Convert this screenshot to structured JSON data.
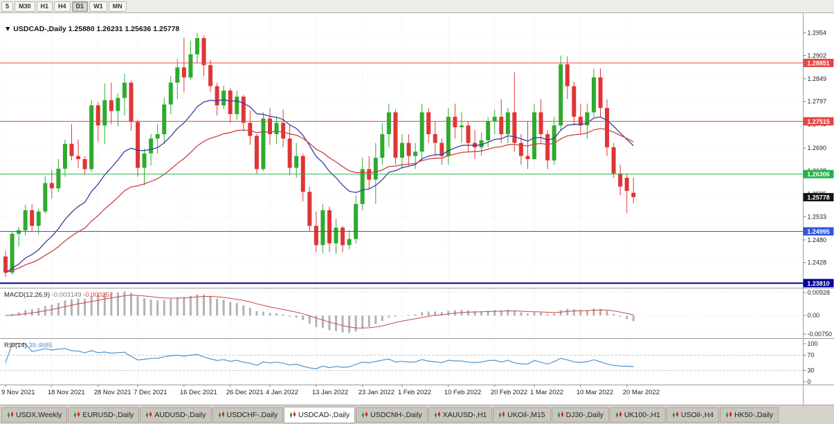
{
  "toolbar": {
    "timeframes": [
      "5",
      "M30",
      "H1",
      "H4",
      "D1",
      "W1",
      "MN"
    ],
    "active_timeframe": "D1"
  },
  "chart_header": {
    "marker": "▼",
    "symbol": "USDCAD-,Daily",
    "open": "1.25880",
    "high": "1.26231",
    "low": "1.25636",
    "close": "1.25778"
  },
  "chart_data": {
    "type": "candlestick",
    "title": "USDCAD-,Daily",
    "price_range": [
      1.2372,
      1.2996
    ],
    "price_axis_ticks": [
      "1.2954",
      "1.2902",
      "1.2849",
      "1.2797",
      "1.2745",
      "1.2690",
      "1.2638",
      "1.2585",
      "1.2533",
      "1.2480",
      "1.2428"
    ],
    "up_color": "#2eab2e",
    "down_color": "#e03535",
    "levels": [
      {
        "price": 1.28851,
        "label": "1.28851",
        "color": "#e84545",
        "width": 1
      },
      {
        "price": 1.27515,
        "label": "1.27515",
        "color": "#e84545",
        "width": 1
      },
      {
        "price": 1.26306,
        "label": "1.26306",
        "color": "#22b14c",
        "width": 1
      },
      {
        "price": 1.24995,
        "label": "1.24995",
        "color": "#3355dd",
        "width": 1
      },
      {
        "price": 1.2381,
        "label": "1.23810",
        "color": "#000099",
        "width": 2
      }
    ],
    "current_price": {
      "value": 1.25778,
      "label": "1.25778",
      "badge_color": "#141414"
    },
    "moving_averages": [
      {
        "period": 17,
        "type": "ema",
        "color": "#3b3b9e"
      },
      {
        "period": 34,
        "type": "ema",
        "color": "#cc4040"
      }
    ],
    "macd": {
      "label": "MACD(12,26,9)",
      "values_text": [
        "-0.003149",
        "-0.000257"
      ],
      "axis_ticks": [
        "0.00928",
        "0.00",
        "-0.00750"
      ],
      "range": [
        -0.0086,
        0.0104
      ],
      "histogram_color": "#b2b2b2",
      "signal_color": "#cc4444"
    },
    "rsi": {
      "label": "RSI(14)",
      "value_text": "39.4685",
      "axis_ticks": [
        "100",
        "70",
        "30",
        "0"
      ],
      "levels": [
        70,
        30
      ],
      "line_color": "#4f94cd"
    },
    "date_ticks": [
      {
        "label": "9 Nov 2021",
        "index": 0
      },
      {
        "label": "18 Nov 2021",
        "index": 7
      },
      {
        "label": "28 Nov 2021",
        "index": 14
      },
      {
        "label": "7 Dec 2021",
        "index": 20
      },
      {
        "label": "16 Dec 2021",
        "index": 27
      },
      {
        "label": "26 Dec 2021",
        "index": 34
      },
      {
        "label": "4 Jan 2022",
        "index": 40
      },
      {
        "label": "13 Jan 2022",
        "index": 47
      },
      {
        "label": "23 Jan 2022",
        "index": 54
      },
      {
        "label": "1 Feb 2022",
        "index": 60
      },
      {
        "label": "10 Feb 2022",
        "index": 67
      },
      {
        "label": "20 Feb 2022",
        "index": 74
      },
      {
        "label": "1 Mar 2022",
        "index": 80
      },
      {
        "label": "10 Mar 2022",
        "index": 87
      },
      {
        "label": "20 Mar 2022",
        "index": 94
      }
    ],
    "candles": [
      [
        "2021-11-09",
        1.2442,
        1.2455,
        1.2395,
        1.2405
      ],
      [
        "2021-11-10",
        1.2405,
        1.25,
        1.24,
        1.2494
      ],
      [
        "2021-11-11",
        1.2494,
        1.251,
        1.2465,
        1.2502
      ],
      [
        "2021-11-12",
        1.2502,
        1.256,
        1.249,
        1.2548
      ],
      [
        "2021-11-15",
        1.2548,
        1.2562,
        1.25,
        1.2512
      ],
      [
        "2021-11-16",
        1.2512,
        1.2552,
        1.2492,
        1.2545
      ],
      [
        "2021-11-17",
        1.2545,
        1.2626,
        1.254,
        1.261
      ],
      [
        "2021-11-18",
        1.261,
        1.264,
        1.2575,
        1.2598
      ],
      [
        "2021-11-19",
        1.2598,
        1.2665,
        1.259,
        1.2643
      ],
      [
        "2021-11-22",
        1.2643,
        1.271,
        1.2625,
        1.27
      ],
      [
        "2021-11-23",
        1.27,
        1.2745,
        1.2662,
        1.2672
      ],
      [
        "2021-11-24",
        1.2672,
        1.271,
        1.2645,
        1.2665
      ],
      [
        "2021-11-25",
        1.2665,
        1.2672,
        1.2628,
        1.2642
      ],
      [
        "2021-11-26",
        1.2642,
        1.28,
        1.2636,
        1.2788
      ],
      [
        "2021-11-29",
        1.2788,
        1.2795,
        1.2705,
        1.2742
      ],
      [
        "2021-11-30",
        1.2742,
        1.2838,
        1.27,
        1.28
      ],
      [
        "2021-12-01",
        1.28,
        1.284,
        1.2745,
        1.2775
      ],
      [
        "2021-12-02",
        1.2775,
        1.2815,
        1.274,
        1.2805
      ],
      [
        "2021-12-03",
        1.2805,
        1.286,
        1.2765,
        1.284
      ],
      [
        "2021-12-06",
        1.284,
        1.2845,
        1.273,
        1.275
      ],
      [
        "2021-12-07",
        1.275,
        1.2755,
        1.2625,
        1.2645
      ],
      [
        "2021-12-08",
        1.2645,
        1.269,
        1.2605,
        1.2678
      ],
      [
        "2021-12-09",
        1.2678,
        1.2722,
        1.265,
        1.2712
      ],
      [
        "2021-12-10",
        1.2712,
        1.2745,
        1.2678,
        1.2722
      ],
      [
        "2021-12-13",
        1.2722,
        1.2805,
        1.27,
        1.279
      ],
      [
        "2021-12-14",
        1.279,
        1.2855,
        1.2768,
        1.284
      ],
      [
        "2021-12-15",
        1.284,
        1.2895,
        1.2802,
        1.2875
      ],
      [
        "2021-12-16",
        1.2875,
        1.2942,
        1.2818,
        1.2852
      ],
      [
        "2021-12-17",
        1.2852,
        1.2936,
        1.2846,
        1.2905
      ],
      [
        "2021-12-20",
        1.2905,
        1.2954,
        1.2885,
        1.2942
      ],
      [
        "2021-12-21",
        1.2942,
        1.2948,
        1.2855,
        1.288
      ],
      [
        "2021-12-22",
        1.288,
        1.2892,
        1.2818,
        1.2832
      ],
      [
        "2021-12-23",
        1.2832,
        1.284,
        1.2765,
        1.2788
      ],
      [
        "2021-12-24",
        1.2788,
        1.2833,
        1.278,
        1.2822
      ],
      [
        "2021-12-27",
        1.2822,
        1.2828,
        1.2748,
        1.2768
      ],
      [
        "2021-12-28",
        1.2768,
        1.2822,
        1.2755,
        1.2808
      ],
      [
        "2021-12-29",
        1.2808,
        1.2812,
        1.2728,
        1.2748
      ],
      [
        "2021-12-30",
        1.2748,
        1.2776,
        1.2698,
        1.2718
      ],
      [
        "2021-12-31",
        1.2718,
        1.2722,
        1.2632,
        1.2642
      ],
      [
        "2022-01-03",
        1.2642,
        1.2772,
        1.2638,
        1.2758
      ],
      [
        "2022-01-04",
        1.2758,
        1.2782,
        1.2698,
        1.2722
      ],
      [
        "2022-01-05",
        1.2722,
        1.2762,
        1.27,
        1.2748
      ],
      [
        "2022-01-06",
        1.2748,
        1.2778,
        1.2692,
        1.2712
      ],
      [
        "2022-01-07",
        1.2712,
        1.2742,
        1.2628,
        1.2645
      ],
      [
        "2022-01-10",
        1.2645,
        1.2702,
        1.2622,
        1.2672
      ],
      [
        "2022-01-11",
        1.2672,
        1.2678,
        1.2568,
        1.259
      ],
      [
        "2022-01-12",
        1.259,
        1.2602,
        1.2498,
        1.2512
      ],
      [
        "2022-01-13",
        1.2512,
        1.2545,
        1.2452,
        1.2468
      ],
      [
        "2022-01-14",
        1.2468,
        1.2562,
        1.245,
        1.2548
      ],
      [
        "2022-01-17",
        1.2548,
        1.2556,
        1.2452,
        1.2472
      ],
      [
        "2022-01-18",
        1.2472,
        1.2528,
        1.2448,
        1.2508
      ],
      [
        "2022-01-19",
        1.2508,
        1.2512,
        1.2452,
        1.2468
      ],
      [
        "2022-01-20",
        1.2468,
        1.2502,
        1.2458,
        1.2482
      ],
      [
        "2022-01-21",
        1.2482,
        1.2582,
        1.2472,
        1.2562
      ],
      [
        "2022-01-24",
        1.2562,
        1.2668,
        1.2548,
        1.2642
      ],
      [
        "2022-01-25",
        1.2642,
        1.2672,
        1.2598,
        1.2618
      ],
      [
        "2022-01-26",
        1.2618,
        1.2702,
        1.2562,
        1.2668
      ],
      [
        "2022-01-27",
        1.2668,
        1.2748,
        1.2652,
        1.2722
      ],
      [
        "2022-01-28",
        1.2722,
        1.2792,
        1.2692,
        1.2772
      ],
      [
        "2022-01-31",
        1.2772,
        1.2778,
        1.2652,
        1.2668
      ],
      [
        "2022-02-01",
        1.2668,
        1.2722,
        1.2642,
        1.2702
      ],
      [
        "2022-02-02",
        1.2702,
        1.2722,
        1.265,
        1.2672
      ],
      [
        "2022-02-03",
        1.2672,
        1.2702,
        1.2642,
        1.2682
      ],
      [
        "2022-02-04",
        1.2682,
        1.2792,
        1.2662,
        1.2772
      ],
      [
        "2022-02-07",
        1.2772,
        1.2782,
        1.2702,
        1.2722
      ],
      [
        "2022-02-08",
        1.2722,
        1.2752,
        1.2672,
        1.2702
      ],
      [
        "2022-02-09",
        1.2702,
        1.2712,
        1.2652,
        1.2672
      ],
      [
        "2022-02-10",
        1.2672,
        1.2782,
        1.2652,
        1.2762
      ],
      [
        "2022-02-11",
        1.2762,
        1.2792,
        1.2712,
        1.2738
      ],
      [
        "2022-02-14",
        1.2738,
        1.2772,
        1.2702,
        1.2742
      ],
      [
        "2022-02-15",
        1.2742,
        1.2752,
        1.2682,
        1.2702
      ],
      [
        "2022-02-16",
        1.2702,
        1.2732,
        1.2665,
        1.2692
      ],
      [
        "2022-02-17",
        1.2692,
        1.2726,
        1.2672,
        1.2708
      ],
      [
        "2022-02-18",
        1.2708,
        1.2762,
        1.2692,
        1.2752
      ],
      [
        "2022-02-21",
        1.2752,
        1.2778,
        1.2722,
        1.2762
      ],
      [
        "2022-02-22",
        1.2762,
        1.2802,
        1.2702,
        1.2722
      ],
      [
        "2022-02-23",
        1.2722,
        1.2782,
        1.2702,
        1.2772
      ],
      [
        "2022-02-24",
        1.2772,
        1.2864,
        1.2682,
        1.2702
      ],
      [
        "2022-02-25",
        1.2702,
        1.2722,
        1.2652,
        1.2672
      ],
      [
        "2022-02-28",
        1.2672,
        1.2752,
        1.2642,
        1.2665
      ],
      [
        "2022-03-01",
        1.2665,
        1.2792,
        1.2662,
        1.2772
      ],
      [
        "2022-03-02",
        1.2772,
        1.2802,
        1.2702,
        1.2722
      ],
      [
        "2022-03-03",
        1.2722,
        1.2732,
        1.2642,
        1.2662
      ],
      [
        "2022-03-04",
        1.2662,
        1.2762,
        1.2652,
        1.2742
      ],
      [
        "2022-03-07",
        1.2742,
        1.2902,
        1.2732,
        1.2882
      ],
      [
        "2022-03-08",
        1.2882,
        1.29,
        1.2802,
        1.2832
      ],
      [
        "2022-03-09",
        1.2832,
        1.2842,
        1.2742,
        1.2762
      ],
      [
        "2022-03-10",
        1.2762,
        1.2792,
        1.2722,
        1.2742
      ],
      [
        "2022-03-11",
        1.2742,
        1.2792,
        1.2712,
        1.2772
      ],
      [
        "2022-03-14",
        1.2772,
        1.2872,
        1.2762,
        1.2852
      ],
      [
        "2022-03-15",
        1.2852,
        1.2872,
        1.2762,
        1.2782
      ],
      [
        "2022-03-16",
        1.2782,
        1.2802,
        1.2672,
        1.2692
      ],
      [
        "2022-03-17",
        1.2692,
        1.2702,
        1.2622,
        1.2632
      ],
      [
        "2022-03-18",
        1.2632,
        1.2652,
        1.2582,
        1.2602
      ],
      [
        "2022-03-21",
        1.2622,
        1.2632,
        1.2542,
        1.2592
      ],
      [
        "2022-03-22",
        1.2588,
        1.26231,
        1.25636,
        1.25778
      ]
    ]
  },
  "tab_bar": {
    "tabs": [
      "USDX,Weekly",
      "EURUSD-,Daily",
      "AUDUSD-,Daily",
      "USDCHF-,Daily",
      "USDCAD-,Daily",
      "USDCNH-,Daily",
      "XAUUSD-,H1",
      "UKOil-,M15",
      "DJ30-,Daily",
      "UK100-,H1",
      "USOil-,H4",
      "HK50-,Daily"
    ],
    "active": "USDCAD-,Daily"
  }
}
